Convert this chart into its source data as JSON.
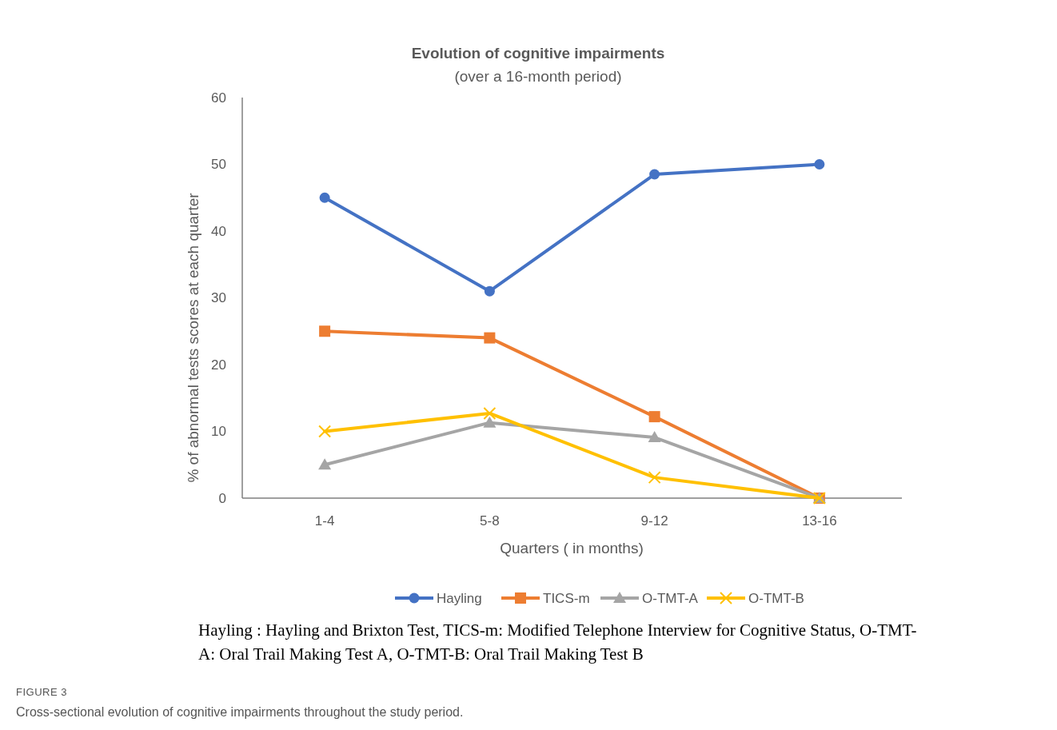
{
  "chart_data": {
    "type": "line",
    "title": "Evolution of cognitive impairments",
    "subtitle": "(over a 16-month period)",
    "xlabel": "Quarters ( in months)",
    "ylabel": "% of abnormal tests scores at each quarter",
    "categories": [
      "1-4",
      "5-8",
      "9-12",
      "13-16"
    ],
    "ylim": [
      0,
      60
    ],
    "yticks": [
      0,
      10,
      20,
      30,
      40,
      50,
      60
    ],
    "grid": false,
    "legend": "bottom",
    "line_style": "solid",
    "series": [
      {
        "name": "Hayling",
        "color": "#4472c4",
        "marker": "circle",
        "values": [
          45,
          31,
          48.5,
          50
        ]
      },
      {
        "name": "TICS-m",
        "color": "#ed7d31",
        "marker": "square",
        "values": [
          25,
          24,
          12.2,
          0
        ]
      },
      {
        "name": "O-TMT-A",
        "color": "#a5a5a5",
        "marker": "triangle",
        "values": [
          5,
          11.3,
          9.1,
          0
        ]
      },
      {
        "name": "O-TMT-B",
        "color": "#ffc000",
        "marker": "cross",
        "values": [
          10,
          12.7,
          3.1,
          0
        ]
      }
    ],
    "annotations": [
      "Hayling : Hayling and Brixton Test, TICS-m: Modified Telephone Interview for Cognitive Status, O-TMT-A: Oral Trail Making Test A, O-TMT-B: Oral Trail Making Test B",
      "FIGURE 3",
      "Cross-sectional evolution of cognitive impairments throughout the study period."
    ]
  }
}
